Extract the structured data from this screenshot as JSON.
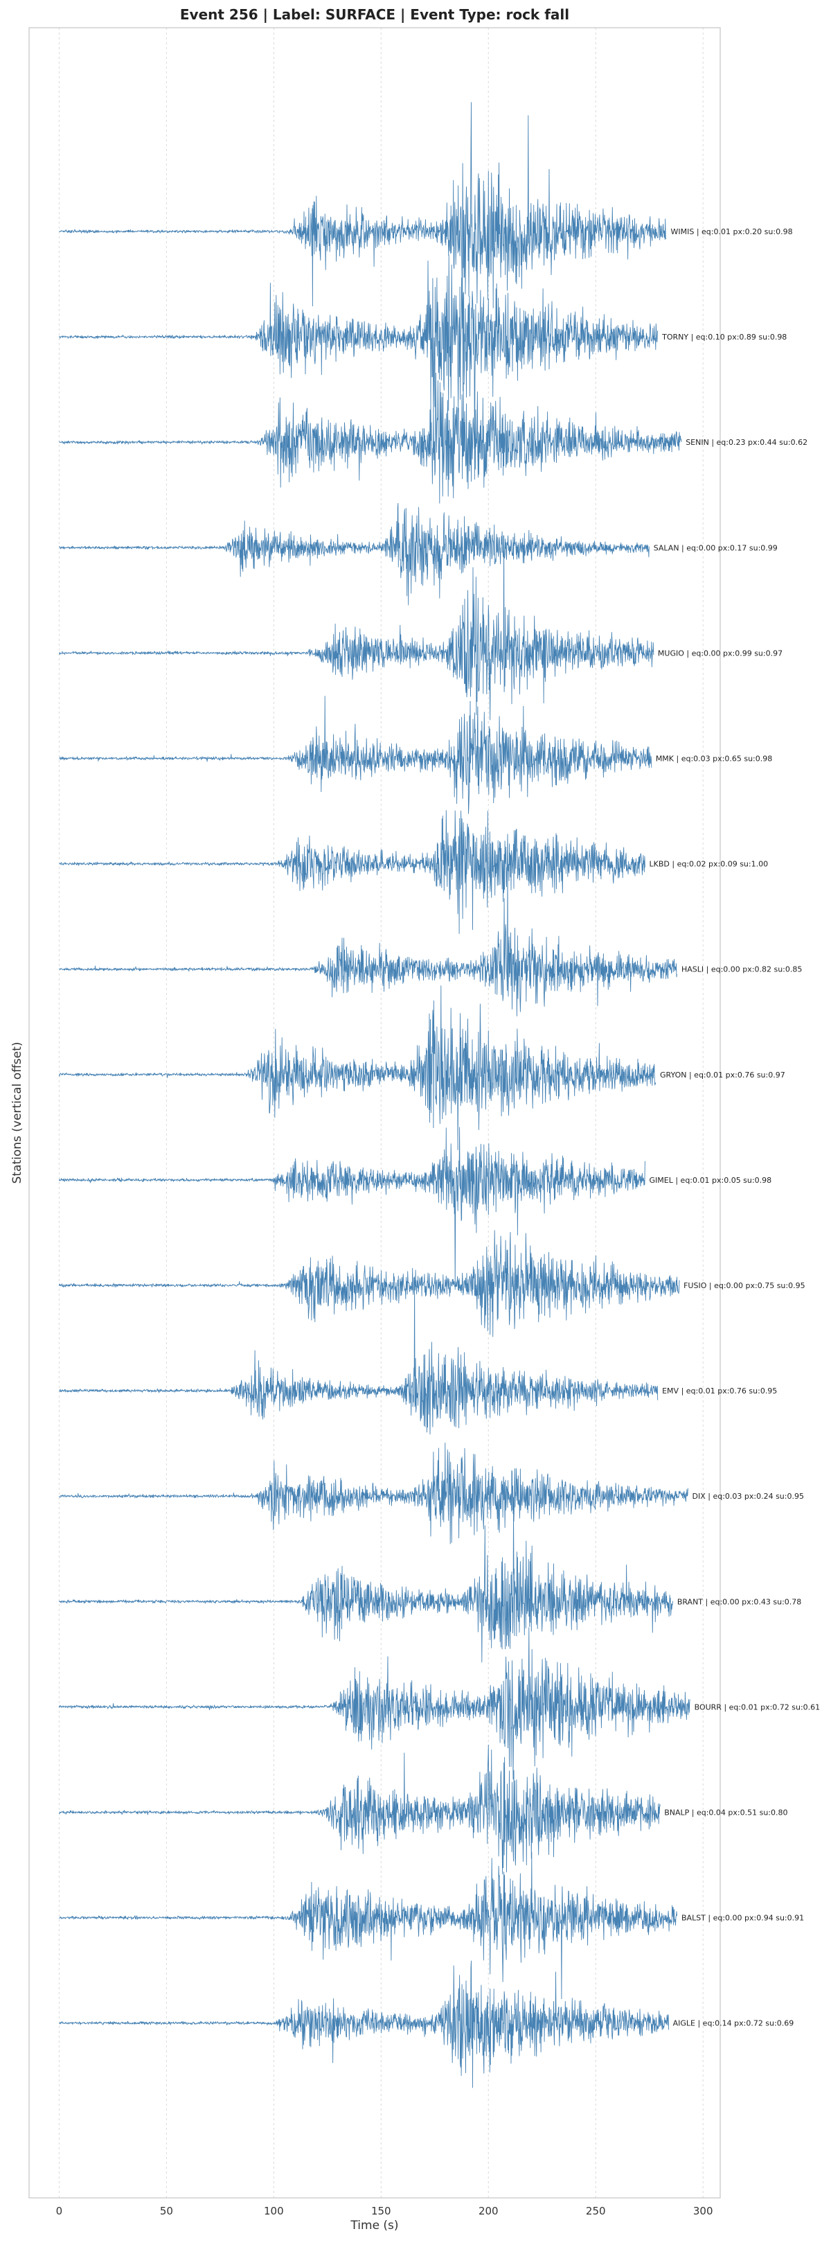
{
  "chart_data": {
    "type": "line",
    "title": "Event 256 | Label: SURFACE | Event Type: rock fall",
    "xlabel": "Time (s)",
    "ylabel": "Stations (vertical offset)",
    "xlim": [
      -14,
      308
    ],
    "xticks": [
      0,
      50,
      100,
      150,
      200,
      250,
      300
    ],
    "xtick_labels": [
      "0",
      "50",
      "100",
      "150",
      "200",
      "250",
      "300"
    ],
    "grid": "vertical",
    "line_color": "#4682b4",
    "series": [
      {
        "station": "WIMIS",
        "label": "WIMIS | eq:0.01 px:0.20 su:0.98",
        "end": 283,
        "bursts": [
          {
            "t": 118,
            "rise": 14,
            "decay": 40,
            "amp": 0.8
          },
          {
            "t": 188,
            "rise": 14,
            "decay": 55,
            "amp": 1.6
          }
        ]
      },
      {
        "station": "TORNY",
        "label": "TORNY | eq:0.10 px:0.89 su:0.98",
        "end": 279,
        "bursts": [
          {
            "t": 100,
            "rise": 12,
            "decay": 40,
            "amp": 1.0
          },
          {
            "t": 175,
            "rise": 14,
            "decay": 55,
            "amp": 1.7
          }
        ]
      },
      {
        "station": "SENIN",
        "label": "SENIN | eq:0.23 px:0.44 su:0.62",
        "end": 290,
        "bursts": [
          {
            "t": 103,
            "rise": 12,
            "decay": 40,
            "amp": 1.0
          },
          {
            "t": 176,
            "rise": 14,
            "decay": 55,
            "amp": 1.3
          }
        ]
      },
      {
        "station": "SALAN",
        "label": "SALAN | eq:0.00 px:0.17 su:0.99",
        "end": 275,
        "bursts": [
          {
            "t": 85,
            "rise": 10,
            "decay": 30,
            "amp": 0.6
          },
          {
            "t": 160,
            "rise": 12,
            "decay": 40,
            "amp": 1.15
          }
        ]
      },
      {
        "station": "MUGIO",
        "label": "MUGIO | eq:0.00 px:0.99 su:0.97",
        "end": 277,
        "bursts": [
          {
            "t": 128,
            "rise": 15,
            "decay": 45,
            "amp": 0.65
          },
          {
            "t": 190,
            "rise": 14,
            "decay": 55,
            "amp": 1.2
          }
        ]
      },
      {
        "station": "MMK",
        "label": "MMK | eq:0.03 px:0.65 su:0.98",
        "end": 276,
        "bursts": [
          {
            "t": 118,
            "rise": 14,
            "decay": 45,
            "amp": 0.7
          },
          {
            "t": 188,
            "rise": 14,
            "decay": 55,
            "amp": 1.1
          }
        ]
      },
      {
        "station": "LKBD",
        "label": "LKBD | eq:0.02 px:0.09 su:1.00",
        "end": 273,
        "bursts": [
          {
            "t": 112,
            "rise": 14,
            "decay": 45,
            "amp": 0.6
          },
          {
            "t": 182,
            "rise": 14,
            "decay": 55,
            "amp": 1.3
          }
        ]
      },
      {
        "station": "HASLI",
        "label": "HASLI | eq:0.00 px:0.82 su:0.85",
        "end": 288,
        "bursts": [
          {
            "t": 130,
            "rise": 15,
            "decay": 40,
            "amp": 0.7
          },
          {
            "t": 205,
            "rise": 14,
            "decay": 45,
            "amp": 1.0
          }
        ]
      },
      {
        "station": "GRYON",
        "label": "GRYON | eq:0.01 px:0.76 su:0.97",
        "end": 278,
        "bursts": [
          {
            "t": 97,
            "rise": 12,
            "decay": 40,
            "amp": 0.9
          },
          {
            "t": 174,
            "rise": 14,
            "decay": 55,
            "amp": 1.4
          }
        ]
      },
      {
        "station": "GIMEL",
        "label": "GIMEL | eq:0.01 px:0.05 su:0.98",
        "end": 273,
        "bursts": [
          {
            "t": 110,
            "rise": 14,
            "decay": 45,
            "amp": 0.6
          },
          {
            "t": 182,
            "rise": 14,
            "decay": 55,
            "amp": 1.1
          }
        ]
      },
      {
        "station": "FUSIO",
        "label": "FUSIO | eq:0.00 px:0.75 su:0.95",
        "end": 289,
        "bursts": [
          {
            "t": 116,
            "rise": 14,
            "decay": 45,
            "amp": 0.8
          },
          {
            "t": 200,
            "rise": 14,
            "decay": 50,
            "amp": 1.2
          }
        ]
      },
      {
        "station": "EMV",
        "label": "EMV | eq:0.01 px:0.76 su:0.95",
        "end": 279,
        "bursts": [
          {
            "t": 88,
            "rise": 10,
            "decay": 30,
            "amp": 0.75
          },
          {
            "t": 168,
            "rise": 12,
            "decay": 45,
            "amp": 1.25
          }
        ]
      },
      {
        "station": "DIX",
        "label": "DIX | eq:0.03 px:0.24 su:0.95",
        "end": 293,
        "bursts": [
          {
            "t": 100,
            "rise": 12,
            "decay": 40,
            "amp": 0.7
          },
          {
            "t": 177,
            "rise": 14,
            "decay": 50,
            "amp": 1.2
          }
        ]
      },
      {
        "station": "BRANT",
        "label": "BRANT | eq:0.00 px:0.43 su:0.78",
        "end": 286,
        "bursts": [
          {
            "t": 123,
            "rise": 14,
            "decay": 40,
            "amp": 0.85
          },
          {
            "t": 200,
            "rise": 14,
            "decay": 50,
            "amp": 1.3
          }
        ]
      },
      {
        "station": "BOURR",
        "label": "BOURR | eq:0.01 px:0.72 su:0.61",
        "end": 294,
        "bursts": [
          {
            "t": 138,
            "rise": 15,
            "decay": 45,
            "amp": 0.9
          },
          {
            "t": 210,
            "rise": 14,
            "decay": 50,
            "amp": 1.5
          }
        ]
      },
      {
        "station": "BNALP",
        "label": "BNALP | eq:0.04 px:0.51 su:0.80",
        "end": 280,
        "bursts": [
          {
            "t": 133,
            "rise": 15,
            "decay": 45,
            "amp": 0.9
          },
          {
            "t": 200,
            "rise": 14,
            "decay": 50,
            "amp": 1.3
          }
        ]
      },
      {
        "station": "BALST",
        "label": "BALST | eq:0.00 px:0.94 su:0.91",
        "end": 288,
        "bursts": [
          {
            "t": 118,
            "rise": 14,
            "decay": 45,
            "amp": 1.0
          },
          {
            "t": 200,
            "rise": 14,
            "decay": 50,
            "amp": 1.2
          }
        ]
      },
      {
        "station": "AIGLE",
        "label": "AIGLE | eq:0.14 px:0.72 su:0.69",
        "end": 284,
        "bursts": [
          {
            "t": 112,
            "rise": 14,
            "decay": 40,
            "amp": 0.6
          },
          {
            "t": 185,
            "rise": 14,
            "decay": 55,
            "amp": 1.2
          }
        ]
      }
    ]
  }
}
